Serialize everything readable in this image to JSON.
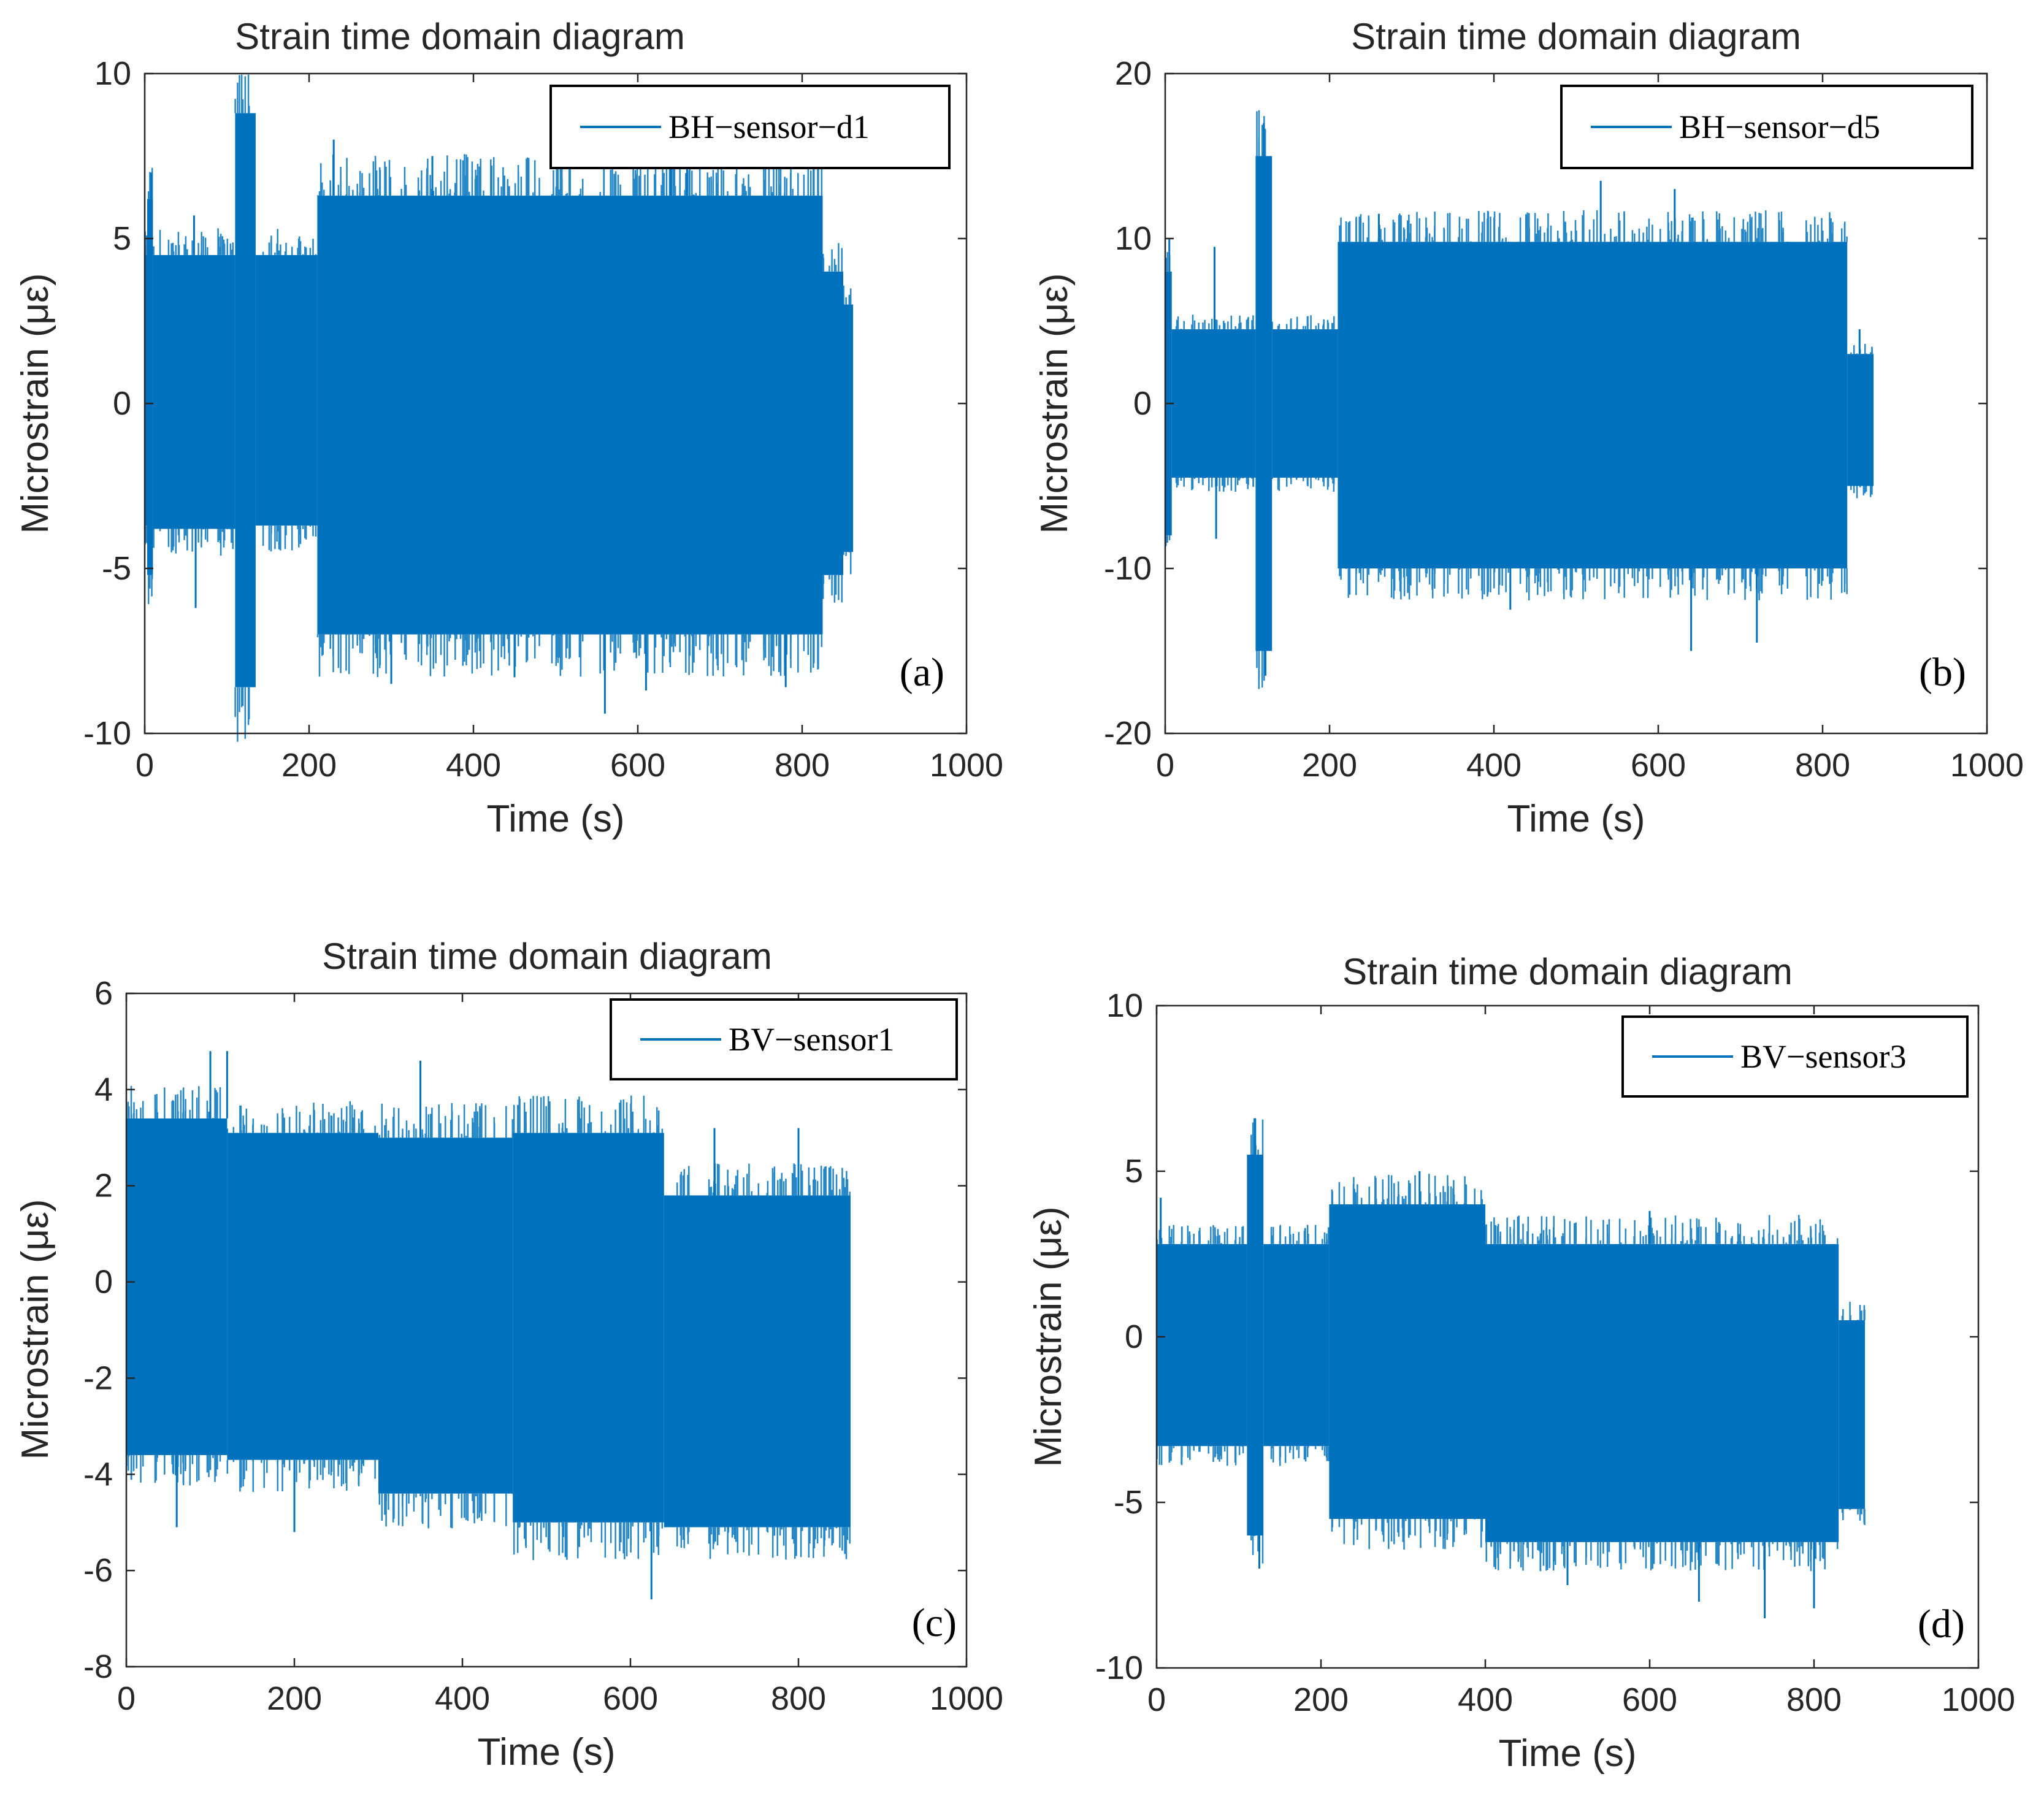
{
  "figure": {
    "background": "#ffffff",
    "series_color": "#0072bd",
    "axis_color": "#262626"
  },
  "chart_data": [
    {
      "type": "line",
      "panel_tag": "(a)",
      "title": "Strain time domain diagram",
      "xlabel": "Time (s)",
      "ylabel": "Microstrain (με)",
      "xlim": [
        0,
        1000
      ],
      "ylim": [
        -10,
        10
      ],
      "x_ticks": [
        0,
        200,
        400,
        600,
        800,
        1000
      ],
      "y_ticks": [
        -10,
        -5,
        0,
        5,
        10
      ],
      "x_tick_labels": [
        "0",
        "200",
        "400",
        "600",
        "800",
        "1000"
      ],
      "y_tick_labels": [
        "-10",
        "-5",
        "0",
        "5",
        "10"
      ],
      "legend": {
        "position": "top-right",
        "entries": [
          "BH−sensor−d1"
        ]
      },
      "series": [
        {
          "name": "BH−sensor−d1",
          "x_end": 862,
          "segments": [
            {
              "x": [
                0,
                3
              ],
              "upper": 4.5,
              "lower": -3.7
            },
            {
              "x": [
                3,
                10
              ],
              "upper": 6.2,
              "lower": -5.2
            },
            {
              "x": [
                10,
                110
              ],
              "upper": 4.5,
              "lower": -3.8
            },
            {
              "x": [
                110,
                135
              ],
              "upper": 8.8,
              "lower": -8.6
            },
            {
              "x": [
                135,
                210
              ],
              "upper": 4.5,
              "lower": -3.7
            },
            {
              "x": [
                210,
                825
              ],
              "upper": 6.3,
              "lower": -7.0
            },
            {
              "x": [
                825,
                850
              ],
              "upper": 4.0,
              "lower": -5.2
            },
            {
              "x": [
                850,
                862
              ],
              "upper": 3.0,
              "lower": -4.5
            }
          ],
          "spikes": [
            {
              "x": 8,
              "y": 7.0
            },
            {
              "x": 60,
              "y": 5.7
            },
            {
              "x": 62,
              "y": -6.2
            },
            {
              "x": 120,
              "y": 8.8
            },
            {
              "x": 122,
              "y": -8.6
            },
            {
              "x": 230,
              "y": 8.0
            },
            {
              "x": 300,
              "y": -8.5
            },
            {
              "x": 560,
              "y": -9.4
            },
            {
              "x": 610,
              "y": -8.7
            },
            {
              "x": 640,
              "y": 7.8
            },
            {
              "x": 660,
              "y": 7.6
            },
            {
              "x": 780,
              "y": -8.6
            },
            {
              "x": 350,
              "y": 7.5
            },
            {
              "x": 450,
              "y": -8.3
            }
          ]
        }
      ]
    },
    {
      "type": "line",
      "panel_tag": "(b)",
      "title": "Strain time domain diagram",
      "xlabel": "Time (s)",
      "ylabel": "Microstrain (με)",
      "xlim": [
        0,
        1000
      ],
      "ylim": [
        -20,
        20
      ],
      "x_ticks": [
        0,
        200,
        400,
        600,
        800,
        1000
      ],
      "y_ticks": [
        -20,
        -10,
        0,
        10,
        20
      ],
      "x_tick_labels": [
        "0",
        "200",
        "400",
        "600",
        "800",
        "1000"
      ],
      "y_tick_labels": [
        "-20",
        "-10",
        "0",
        "10",
        "20"
      ],
      "legend": {
        "position": "top-right",
        "entries": [
          "BH−sensor−d5"
        ]
      },
      "series": [
        {
          "name": "BH−sensor−d5",
          "x_end": 862,
          "segments": [
            {
              "x": [
                0,
                8
              ],
              "upper": 8.0,
              "lower": -8.0
            },
            {
              "x": [
                8,
                110
              ],
              "upper": 4.5,
              "lower": -4.5
            },
            {
              "x": [
                110,
                130
              ],
              "upper": 15.0,
              "lower": -15.0
            },
            {
              "x": [
                130,
                210
              ],
              "upper": 4.5,
              "lower": -4.5
            },
            {
              "x": [
                210,
                830
              ],
              "upper": 9.8,
              "lower": -10.0
            },
            {
              "x": [
                830,
                862
              ],
              "upper": 3.0,
              "lower": -5.0
            }
          ],
          "spikes": [
            {
              "x": 5,
              "y": 10.0
            },
            {
              "x": 60,
              "y": 9.5
            },
            {
              "x": 62,
              "y": -8.2
            },
            {
              "x": 120,
              "y": 17.0
            },
            {
              "x": 122,
              "y": -16.5
            },
            {
              "x": 260,
              "y": 11.5
            },
            {
              "x": 420,
              "y": -12.5
            },
            {
              "x": 530,
              "y": 13.5
            },
            {
              "x": 620,
              "y": 13.0
            },
            {
              "x": 640,
              "y": -15.0
            },
            {
              "x": 720,
              "y": -14.5
            },
            {
              "x": 845,
              "y": 4.5
            }
          ]
        }
      ]
    },
    {
      "type": "line",
      "panel_tag": "(c)",
      "title": "Strain time domain diagram",
      "xlabel": "Time (s)",
      "ylabel": "Microstrain (με)",
      "xlim": [
        0,
        1000
      ],
      "ylim": [
        -8,
        6
      ],
      "x_ticks": [
        0,
        200,
        400,
        600,
        800,
        1000
      ],
      "y_ticks": [
        -8,
        -6,
        -4,
        -2,
        0,
        2,
        4,
        6
      ],
      "x_tick_labels": [
        "0",
        "200",
        "400",
        "600",
        "800",
        "1000"
      ],
      "y_tick_labels": [
        "-8",
        "-6",
        "-4",
        "-2",
        "0",
        "2",
        "4",
        "6"
      ],
      "legend": {
        "position": "top-right",
        "entries": [
          "BV−sensor1"
        ]
      },
      "series": [
        {
          "name": "BV−sensor1",
          "x_end": 862,
          "segments": [
            {
              "x": [
                0,
                120
              ],
              "upper": 3.4,
              "lower": -3.6
            },
            {
              "x": [
                120,
                300
              ],
              "upper": 3.1,
              "lower": -3.7
            },
            {
              "x": [
                300,
                460
              ],
              "upper": 3.0,
              "lower": -4.4
            },
            {
              "x": [
                460,
                640
              ],
              "upper": 3.1,
              "lower": -5.0
            },
            {
              "x": [
                640,
                862
              ],
              "upper": 1.8,
              "lower": -5.1
            }
          ],
          "spikes": [
            {
              "x": 100,
              "y": 4.8
            },
            {
              "x": 120,
              "y": 4.8
            },
            {
              "x": 350,
              "y": 4.6
            },
            {
              "x": 625,
              "y": -6.6
            },
            {
              "x": 60,
              "y": -5.1
            },
            {
              "x": 700,
              "y": 3.2
            },
            {
              "x": 800,
              "y": 3.2
            },
            {
              "x": 200,
              "y": -5.2
            }
          ]
        }
      ]
    },
    {
      "type": "line",
      "panel_tag": "(d)",
      "title": "Strain time domain diagram",
      "xlabel": "Time (s)",
      "ylabel": "Microstrain (με)",
      "xlim": [
        0,
        1000
      ],
      "ylim": [
        -10,
        10
      ],
      "x_ticks": [
        0,
        200,
        400,
        600,
        800,
        1000
      ],
      "y_ticks": [
        -10,
        -5,
        0,
        5,
        10
      ],
      "x_tick_labels": [
        "0",
        "200",
        "400",
        "600",
        "800",
        "1000"
      ],
      "y_tick_labels": [
        "-10",
        "-5",
        "0",
        "5",
        "10"
      ],
      "legend": {
        "position": "top-right",
        "entries": [
          "BV−sensor3"
        ]
      },
      "series": [
        {
          "name": "BV−sensor3",
          "x_end": 862,
          "segments": [
            {
              "x": [
                0,
                110
              ],
              "upper": 2.8,
              "lower": -3.3
            },
            {
              "x": [
                110,
                130
              ],
              "upper": 5.5,
              "lower": -6.0
            },
            {
              "x": [
                130,
                210
              ],
              "upper": 2.8,
              "lower": -3.3
            },
            {
              "x": [
                210,
                400
              ],
              "upper": 4.0,
              "lower": -5.5
            },
            {
              "x": [
                400,
                830
              ],
              "upper": 2.8,
              "lower": -6.2
            },
            {
              "x": [
                830,
                862
              ],
              "upper": 0.5,
              "lower": -5.2
            }
          ],
          "spikes": [
            {
              "x": 5,
              "y": 4.2
            },
            {
              "x": 120,
              "y": 6.6
            },
            {
              "x": 125,
              "y": -7.0
            },
            {
              "x": 320,
              "y": 5.0
            },
            {
              "x": 500,
              "y": -7.5
            },
            {
              "x": 660,
              "y": -8.0
            },
            {
              "x": 740,
              "y": -8.5
            },
            {
              "x": 800,
              "y": -8.2
            },
            {
              "x": 600,
              "y": 3.8
            }
          ]
        }
      ]
    }
  ]
}
